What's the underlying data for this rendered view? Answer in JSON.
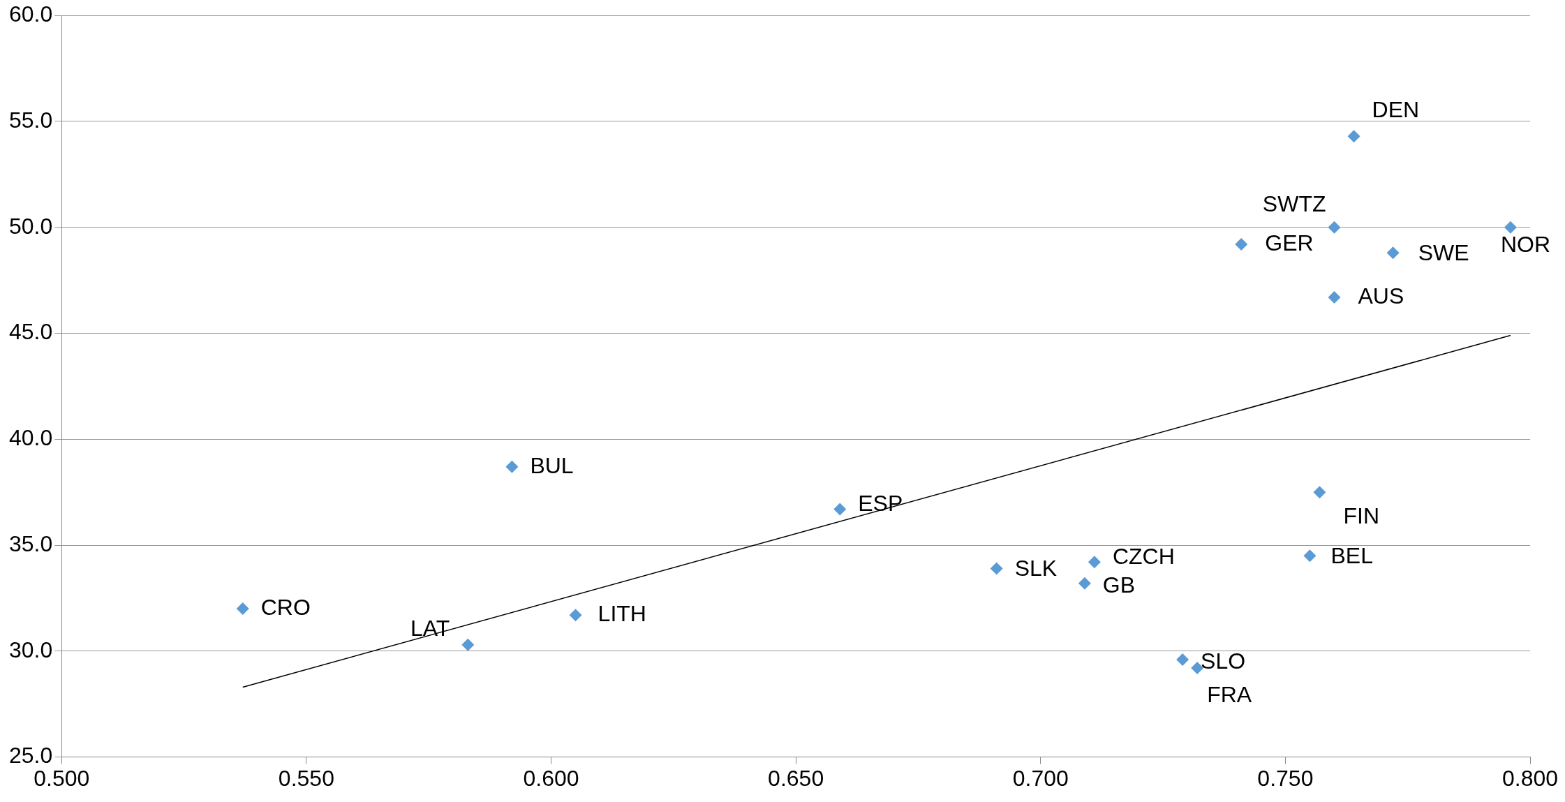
{
  "chart_data": {
    "type": "scatter",
    "xlim": [
      0.5,
      0.8
    ],
    "xticks": [
      {
        "value": 0.5,
        "label": "0.500"
      },
      {
        "value": 0.55,
        "label": "0.550"
      },
      {
        "value": 0.6,
        "label": "0.600"
      },
      {
        "value": 0.65,
        "label": "0.650"
      },
      {
        "value": 0.7,
        "label": "0.700"
      },
      {
        "value": 0.75,
        "label": "0.750"
      },
      {
        "value": 0.8,
        "label": "0.800"
      }
    ],
    "ylim": [
      25,
      60
    ],
    "yticks": [
      {
        "value": 25,
        "label": "25.0"
      },
      {
        "value": 30,
        "label": "30.0"
      },
      {
        "value": 35,
        "label": "35.0"
      },
      {
        "value": 40,
        "label": "40.0"
      },
      {
        "value": 45,
        "label": "45.0"
      },
      {
        "value": 50,
        "label": "50.0"
      },
      {
        "value": 55,
        "label": "55.0"
      },
      {
        "value": 60,
        "label": "60.0"
      }
    ],
    "grid": "y",
    "legend": false,
    "series": [
      {
        "marker": "diamond",
        "color": "#5b9bd5",
        "x": [
          0.537,
          0.583,
          0.592,
          0.605,
          0.659,
          0.691,
          0.711,
          0.709,
          0.729,
          0.732,
          0.755,
          0.757,
          0.741,
          0.76,
          0.76,
          0.772,
          0.764,
          0.796
        ],
        "values": [
          32.0,
          30.3,
          38.7,
          31.7,
          36.7,
          33.9,
          34.2,
          33.2,
          29.6,
          29.2,
          34.5,
          37.5,
          49.2,
          50.0,
          46.7,
          48.8,
          54.3,
          50.0
        ]
      },
      {
        "type": "line",
        "marker": "none",
        "color": "#000000",
        "x": [
          0.537,
          0.796
        ],
        "values": [
          28.3,
          44.9
        ]
      }
    ],
    "annotations": [
      {
        "text": "CRO",
        "x": 0.537,
        "y": 32.0
      },
      {
        "text": "LAT",
        "x": 0.583,
        "y": 30.3
      },
      {
        "text": "BUL",
        "x": 0.592,
        "y": 38.7
      },
      {
        "text": "LITH",
        "x": 0.605,
        "y": 31.7
      },
      {
        "text": "ESP",
        "x": 0.659,
        "y": 36.7
      },
      {
        "text": "SLK",
        "x": 0.691,
        "y": 33.9
      },
      {
        "text": "CZCH",
        "x": 0.711,
        "y": 34.2
      },
      {
        "text": "GB",
        "x": 0.709,
        "y": 33.2
      },
      {
        "text": "SLO",
        "x": 0.729,
        "y": 29.6
      },
      {
        "text": "FRA",
        "x": 0.732,
        "y": 29.2
      },
      {
        "text": "BEL",
        "x": 0.755,
        "y": 34.5
      },
      {
        "text": "FIN",
        "x": 0.757,
        "y": 37.5
      },
      {
        "text": "GER",
        "x": 0.741,
        "y": 49.2
      },
      {
        "text": "SWTZ",
        "x": 0.76,
        "y": 50.0
      },
      {
        "text": "AUS",
        "x": 0.76,
        "y": 46.7
      },
      {
        "text": "SWE",
        "x": 0.772,
        "y": 48.8
      },
      {
        "text": "DEN",
        "x": 0.764,
        "y": 54.3
      },
      {
        "text": "NOR",
        "x": 0.796,
        "y": 50.0
      }
    ]
  }
}
